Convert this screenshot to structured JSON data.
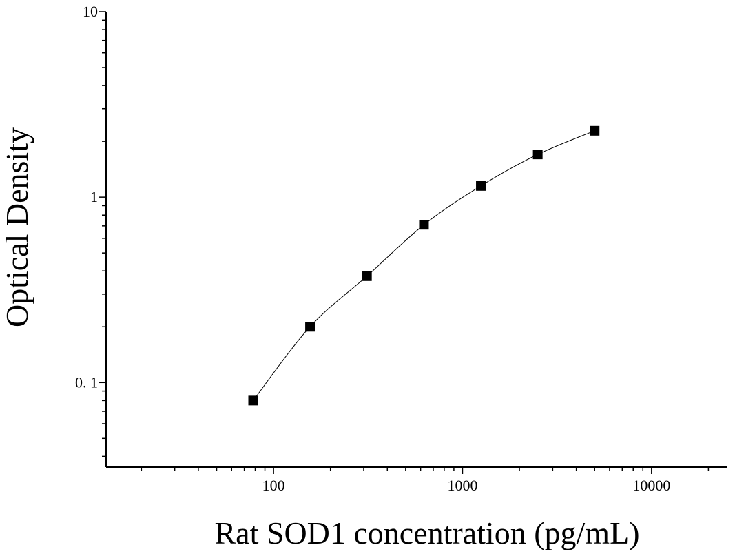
{
  "chart_data": {
    "type": "scatter",
    "title": "",
    "xlabel": "Rat SOD1 concentration (pg/mL)",
    "ylabel": "Optical Density",
    "x_scale": "log",
    "y_scale": "log",
    "xlim": [
      13,
      25000
    ],
    "ylim": [
      0.035,
      10
    ],
    "x_tick_labels": [
      {
        "value": 100,
        "label": "100"
      },
      {
        "value": 1000,
        "label": "1000"
      },
      {
        "value": 10000,
        "label": "10000"
      }
    ],
    "y_tick_labels": [
      {
        "value": 0.1,
        "label": "0. 1"
      },
      {
        "value": 1,
        "label": "1"
      },
      {
        "value": 10,
        "label": "10"
      }
    ],
    "grid": false,
    "legend": "none",
    "series": [
      {
        "marker": "square",
        "color": "#000000",
        "fit_line": "smooth curve",
        "x": [
          78,
          156,
          312,
          625,
          1250,
          2500,
          5000
        ],
        "y": [
          0.08,
          0.2,
          0.375,
          0.71,
          1.15,
          1.7,
          2.28
        ]
      }
    ]
  }
}
